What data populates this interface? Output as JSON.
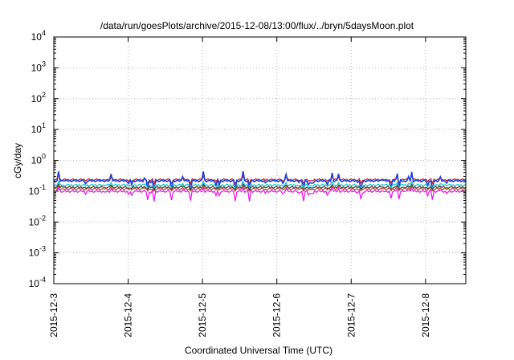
{
  "chart_data": {
    "type": "line",
    "title": "/data/run/goesPlots/archive/2015-12-08/13:00/flux/../bryn/5daysMoon.plot",
    "xlabel": "Coordinated Universal Time (UTC)",
    "ylabel": "cGy/day",
    "y_scale": "log",
    "ylim": [
      0.0001,
      10000
    ],
    "xlim": [
      "2015-12-03",
      "2015-12-08 13:00"
    ],
    "grid": true,
    "x_ticks": [
      "2015-12-3",
      "2015-12-4",
      "2015-12-5",
      "2015-12-6",
      "2015-12-7",
      "2015-12-8"
    ],
    "y_ticks": [
      {
        "base": "10",
        "exp": "-4"
      },
      {
        "base": "10",
        "exp": "-3"
      },
      {
        "base": "10",
        "exp": "-2"
      },
      {
        "base": "10",
        "exp": "-1"
      },
      {
        "base": "10",
        "exp": "0"
      },
      {
        "base": "10",
        "exp": "1"
      },
      {
        "base": "10",
        "exp": "2"
      },
      {
        "base": "10",
        "exp": "3"
      },
      {
        "base": "10",
        "exp": "4"
      }
    ],
    "series": [
      {
        "color": "#d62728",
        "values_approx": {
          "baseline": 0.24,
          "low": 0.17,
          "high": 0.32
        }
      },
      {
        "color": "#1f3fd8",
        "values_approx": {
          "baseline": 0.22,
          "low": 0.1,
          "high": 0.45
        }
      },
      {
        "color": "#1fc7c7",
        "values_approx": {
          "baseline": 0.16,
          "low": 0.12,
          "high": 0.21
        }
      },
      {
        "color": "#3a3a3a",
        "values_approx": {
          "baseline": 0.135,
          "low": 0.11,
          "high": 0.17
        }
      },
      {
        "color": "#b5533c",
        "values_approx": {
          "baseline": 0.12,
          "low": 0.1,
          "high": 0.15
        }
      },
      {
        "color": "#e81ee8",
        "values_approx": {
          "baseline": 0.1,
          "low": 0.045,
          "high": 0.13
        }
      }
    ]
  }
}
